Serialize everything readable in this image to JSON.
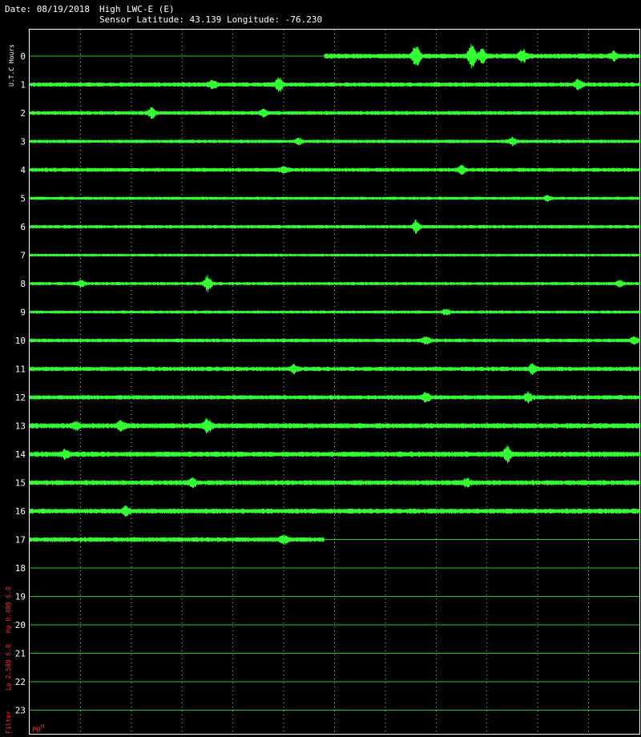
{
  "header": {
    "date_label": "Date: 08/19/2018",
    "mode": "High",
    "station": "LWC-E (E)",
    "sensor": "Sensor Latitude: 43.139  Longitude: -76.230"
  },
  "axis": {
    "y_title": "U.T.C Hours"
  },
  "filter": {
    "label": "Filter",
    "lp": "Lp 2.500 6.0",
    "hp": "Hp 0.400 6.0"
  },
  "corner_mark": {
    "base": "PO",
    "sup": "H"
  },
  "colors": {
    "background": "#000000",
    "trace": "#33ff33",
    "baseline": "#22cc22",
    "grid": "#bbbbbb",
    "filter_text": "#ff2a2a"
  },
  "chart_data": {
    "type": "line",
    "title": "",
    "hours": [
      "0",
      "1",
      "2",
      "3",
      "4",
      "5",
      "6",
      "7",
      "8",
      "9",
      "10",
      "11",
      "12",
      "13",
      "14",
      "15",
      "16",
      "17",
      "18",
      "19",
      "20",
      "21",
      "22",
      "23"
    ],
    "x_range": [
      0,
      60
    ],
    "x_gridlines": [
      5,
      10,
      15,
      20,
      25,
      30,
      35,
      40,
      45,
      50,
      55
    ],
    "series": [
      {
        "hour": 0,
        "start": 29.0,
        "end": 60.0,
        "amplitude": 3.2,
        "events": [
          {
            "t": 38.0,
            "amp": 13
          },
          {
            "t": 43.5,
            "amp": 14
          },
          {
            "t": 44.5,
            "amp": 9
          },
          {
            "t": 48.5,
            "amp": 7
          },
          {
            "t": 57.5,
            "amp": 5
          }
        ]
      },
      {
        "hour": 1,
        "start": 0,
        "end": 60.0,
        "amplitude": 2.8,
        "events": [
          {
            "t": 24.5,
            "amp": 9
          },
          {
            "t": 18.0,
            "amp": 4
          },
          {
            "t": 54.0,
            "amp": 5
          }
        ]
      },
      {
        "hour": 2,
        "start": 0,
        "end": 60.0,
        "amplitude": 2.5,
        "events": [
          {
            "t": 12.0,
            "amp": 5
          },
          {
            "t": 23.0,
            "amp": 3
          }
        ]
      },
      {
        "hour": 3,
        "start": 0,
        "end": 60.0,
        "amplitude": 2.2,
        "events": [
          {
            "t": 47.5,
            "amp": 4
          },
          {
            "t": 26.5,
            "amp": 3
          }
        ]
      },
      {
        "hour": 4,
        "start": 0,
        "end": 60.0,
        "amplitude": 2.5,
        "events": [
          {
            "t": 25.0,
            "amp": 4
          },
          {
            "t": 42.5,
            "amp": 4
          }
        ]
      },
      {
        "hour": 5,
        "start": 0,
        "end": 60.0,
        "amplitude": 2.0,
        "events": [
          {
            "t": 51.0,
            "amp": 3
          }
        ]
      },
      {
        "hour": 6,
        "start": 0,
        "end": 60.0,
        "amplitude": 2.2,
        "events": [
          {
            "t": 38.0,
            "amp": 7
          }
        ]
      },
      {
        "hour": 7,
        "start": 0,
        "end": 60.0,
        "amplitude": 1.8,
        "events": []
      },
      {
        "hour": 8,
        "start": 0,
        "end": 60.0,
        "amplitude": 2.0,
        "events": [
          {
            "t": 17.5,
            "amp": 9
          },
          {
            "t": 5.0,
            "amp": 4
          },
          {
            "t": 58.0,
            "amp": 4
          }
        ]
      },
      {
        "hour": 9,
        "start": 0,
        "end": 60.0,
        "amplitude": 2.0,
        "events": [
          {
            "t": 41.0,
            "amp": 3
          }
        ]
      },
      {
        "hour": 10,
        "start": 0,
        "end": 60.0,
        "amplitude": 2.3,
        "events": [
          {
            "t": 39.0,
            "amp": 4
          },
          {
            "t": 59.5,
            "amp": 4
          }
        ]
      },
      {
        "hour": 11,
        "start": 0,
        "end": 60.0,
        "amplitude": 2.8,
        "events": [
          {
            "t": 49.5,
            "amp": 6
          },
          {
            "t": 26.0,
            "amp": 4
          }
        ]
      },
      {
        "hour": 12,
        "start": 0,
        "end": 60.0,
        "amplitude": 2.8,
        "events": [
          {
            "t": 39.0,
            "amp": 5
          },
          {
            "t": 49.0,
            "amp": 5
          }
        ]
      },
      {
        "hour": 13,
        "start": 0,
        "end": 60.0,
        "amplitude": 3.4,
        "events": [
          {
            "t": 17.5,
            "amp": 8
          },
          {
            "t": 9.0,
            "amp": 5
          },
          {
            "t": 4.5,
            "amp": 4
          }
        ]
      },
      {
        "hour": 14,
        "start": 0,
        "end": 60.0,
        "amplitude": 3.4,
        "events": [
          {
            "t": 47.0,
            "amp": 9
          },
          {
            "t": 3.5,
            "amp": 4
          }
        ]
      },
      {
        "hour": 15,
        "start": 0,
        "end": 60.0,
        "amplitude": 3.2,
        "events": [
          {
            "t": 16.0,
            "amp": 4
          },
          {
            "t": 43.0,
            "amp": 4
          }
        ]
      },
      {
        "hour": 16,
        "start": 0,
        "end": 60.0,
        "amplitude": 3.2,
        "events": [
          {
            "t": 9.5,
            "amp": 5
          }
        ]
      },
      {
        "hour": 17,
        "start": 0,
        "end": 29.0,
        "amplitude": 3.0,
        "events": [
          {
            "t": 25.0,
            "amp": 4
          }
        ]
      }
    ]
  }
}
